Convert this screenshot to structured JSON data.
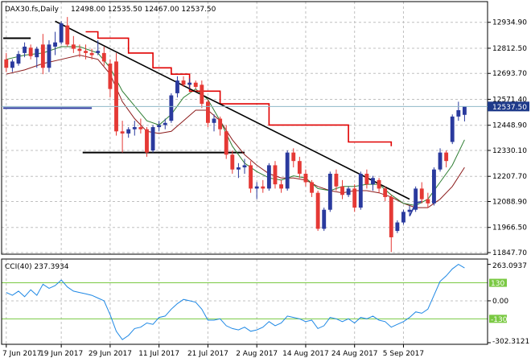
{
  "symbol_label": "DAX30.fs,Daily",
  "ohlc_label": "12498.00 12535.50 12467.00 12537.50",
  "current_price_label": "12537.50",
  "cci_label": "CCI(40) 237.3934",
  "colors": {
    "bull": "#2a3a9e",
    "bear": "#e53935",
    "ma_fast": "#2e7d32",
    "ma_slow": "#8b1a1a",
    "stop_line": "#e00000",
    "trendline": "#000000",
    "cci_line": "#1e88e5",
    "cci_level": "#7ac943",
    "price_tag_bg": "#1e3a8a",
    "price_tag_line": "#8fb8c8"
  },
  "chart_data": [
    {
      "type": "candlestick",
      "title": "DAX30.fs,Daily",
      "y_ticks": [
        12934.9,
        12812.5,
        12693.7,
        12571.4,
        12448.9,
        12330.1,
        12207.7,
        12088.9,
        11966.5,
        11847.7
      ],
      "y_tick_labels": [
        "12934.90",
        "12812.50",
        "12693.70",
        "12571.40",
        "12448.90",
        "12330.10",
        "12207.70",
        "12088.90",
        "11966.50",
        "11847.70"
      ],
      "ylim": [
        11847.7,
        13025
      ],
      "x_tick_labels": [
        "7 Jun 2017",
        "19 Jun 2017",
        "29 Jun 2017",
        "11 Jul 2017",
        "21 Jul 2017",
        "2 Aug 2017",
        "14 Aug 2017",
        "24 Aug 2017",
        "5 Sep 2017"
      ],
      "x_tick_bar_index": [
        0,
        9,
        17,
        25,
        33,
        41,
        49,
        57,
        65
      ],
      "last_price": 12537.5,
      "candles": [
        [
          12760,
          12790,
          12700,
          12720
        ],
        [
          12720,
          12760,
          12700,
          12750
        ],
        [
          12740,
          12800,
          12730,
          12785
        ],
        [
          12790,
          12840,
          12770,
          12820
        ],
        [
          12815,
          12830,
          12760,
          12775
        ],
        [
          12770,
          12820,
          12720,
          12810
        ],
        [
          12830,
          12880,
          12690,
          12720
        ],
        [
          12720,
          12850,
          12700,
          12830
        ],
        [
          12820,
          12890,
          12780,
          12840
        ],
        [
          12840,
          12940,
          12830,
          12930
        ],
        [
          12920,
          12960,
          12820,
          12830
        ],
        [
          12830,
          12870,
          12790,
          12810
        ],
        [
          12810,
          12830,
          12770,
          12800
        ],
        [
          12800,
          12830,
          12760,
          12790
        ],
        [
          12790,
          12810,
          12760,
          12780
        ],
        [
          12790,
          12850,
          12780,
          12800
        ],
        [
          12790,
          12820,
          12730,
          12750
        ],
        [
          12740,
          12760,
          12580,
          12620
        ],
        [
          12750,
          12790,
          12400,
          12420
        ],
        [
          12420,
          12470,
          12320,
          12410
        ],
        [
          12410,
          12440,
          12390,
          12430
        ],
        [
          12430,
          12470,
          12400,
          12440
        ],
        [
          12440,
          12480,
          12410,
          12430
        ],
        [
          12430,
          12440,
          12300,
          12320
        ],
        [
          12330,
          12450,
          12320,
          12440
        ],
        [
          12440,
          12470,
          12420,
          12450
        ],
        [
          12450,
          12480,
          12430,
          12460
        ],
        [
          12470,
          12600,
          12460,
          12590
        ],
        [
          12600,
          12680,
          12580,
          12660
        ],
        [
          12660,
          12680,
          12630,
          12640
        ],
        [
          12640,
          12670,
          12620,
          12650
        ],
        [
          12650,
          12660,
          12620,
          12630
        ],
        [
          12640,
          12660,
          12530,
          12550
        ],
        [
          12560,
          12570,
          12440,
          12460
        ],
        [
          12460,
          12500,
          12420,
          12480
        ],
        [
          12480,
          12490,
          12400,
          12430
        ],
        [
          12420,
          12450,
          12290,
          12310
        ],
        [
          12310,
          12330,
          12220,
          12240
        ],
        [
          12240,
          12270,
          12200,
          12250
        ],
        [
          12250,
          12290,
          12220,
          12260
        ],
        [
          12260,
          12280,
          12130,
          12150
        ],
        [
          12150,
          12180,
          12100,
          12160
        ],
        [
          12160,
          12190,
          12130,
          12150
        ],
        [
          12150,
          12270,
          12140,
          12260
        ],
        [
          12260,
          12280,
          12150,
          12170
        ],
        [
          12170,
          12190,
          12130,
          12150
        ],
        [
          12150,
          12330,
          12140,
          12320
        ],
        [
          12320,
          12340,
          12250,
          12280
        ],
        [
          12280,
          12300,
          12200,
          12220
        ],
        [
          12220,
          12240,
          12160,
          12180
        ],
        [
          12180,
          12190,
          12110,
          12130
        ],
        [
          12130,
          12140,
          11950,
          11960
        ],
        [
          11960,
          12060,
          11950,
          12050
        ],
        [
          12050,
          12230,
          12040,
          12220
        ],
        [
          12220,
          12240,
          12140,
          12160
        ],
        [
          12160,
          12190,
          12100,
          12120
        ],
        [
          12120,
          12160,
          12110,
          12150
        ],
        [
          12150,
          12170,
          12040,
          12060
        ],
        [
          12060,
          12230,
          12050,
          12220
        ],
        [
          12220,
          12240,
          12150,
          12170
        ],
        [
          12170,
          12210,
          12140,
          12200
        ],
        [
          12190,
          12200,
          12130,
          12150
        ],
        [
          12150,
          12160,
          12090,
          12110
        ],
        [
          12110,
          12120,
          11850,
          11920
        ],
        [
          11950,
          12000,
          11940,
          11990
        ],
        [
          11990,
          12050,
          11980,
          12040
        ],
        [
          12040,
          12070,
          12020,
          12050
        ],
        [
          12050,
          12160,
          12040,
          12150
        ],
        [
          12150,
          12180,
          12080,
          12100
        ],
        [
          12100,
          12130,
          12060,
          12080
        ],
        [
          12080,
          12250,
          12070,
          12240
        ],
        [
          12240,
          12340,
          12230,
          12320
        ],
        [
          12320,
          12330,
          12250,
          12280
        ],
        [
          12370,
          12500,
          12360,
          12490
        ],
        [
          12490,
          12560,
          12470,
          12520
        ],
        [
          12498,
          12535.5,
          12467,
          12537.5
        ]
      ],
      "ma_fast": [
        [
          0,
          12760
        ],
        [
          3,
          12780
        ],
        [
          6,
          12790
        ],
        [
          9,
          12820
        ],
        [
          12,
          12820
        ],
        [
          15,
          12790
        ],
        [
          17,
          12720
        ],
        [
          19,
          12610
        ],
        [
          21,
          12540
        ],
        [
          23,
          12470
        ],
        [
          25,
          12450
        ],
        [
          27,
          12500
        ],
        [
          29,
          12580
        ],
        [
          31,
          12620
        ],
        [
          33,
          12570
        ],
        [
          35,
          12470
        ],
        [
          37,
          12350
        ],
        [
          39,
          12270
        ],
        [
          41,
          12230
        ],
        [
          43,
          12200
        ],
        [
          45,
          12190
        ],
        [
          47,
          12210
        ],
        [
          49,
          12200
        ],
        [
          51,
          12150
        ],
        [
          53,
          12140
        ],
        [
          55,
          12160
        ],
        [
          57,
          12160
        ],
        [
          59,
          12170
        ],
        [
          61,
          12170
        ],
        [
          63,
          12120
        ],
        [
          65,
          12080
        ],
        [
          67,
          12070
        ],
        [
          69,
          12100
        ],
        [
          71,
          12180
        ],
        [
          73,
          12260
        ],
        [
          75,
          12380
        ]
      ],
      "ma_slow": [
        [
          0,
          12690
        ],
        [
          3,
          12710
        ],
        [
          6,
          12740
        ],
        [
          9,
          12760
        ],
        [
          12,
          12780
        ],
        [
          15,
          12760
        ],
        [
          17,
          12690
        ],
        [
          19,
          12560
        ],
        [
          21,
          12480
        ],
        [
          23,
          12420
        ],
        [
          25,
          12410
        ],
        [
          27,
          12420
        ],
        [
          29,
          12470
        ],
        [
          31,
          12520
        ],
        [
          33,
          12520
        ],
        [
          35,
          12470
        ],
        [
          37,
          12380
        ],
        [
          39,
          12310
        ],
        [
          41,
          12260
        ],
        [
          43,
          12220
        ],
        [
          45,
          12200
        ],
        [
          47,
          12200
        ],
        [
          49,
          12190
        ],
        [
          51,
          12160
        ],
        [
          53,
          12140
        ],
        [
          55,
          12130
        ],
        [
          57,
          12140
        ],
        [
          59,
          12140
        ],
        [
          61,
          12130
        ],
        [
          63,
          12110
        ],
        [
          65,
          12080
        ],
        [
          67,
          12060
        ],
        [
          69,
          12060
        ],
        [
          71,
          12100
        ],
        [
          73,
          12160
        ],
        [
          75,
          12250
        ]
      ],
      "stop_line": [
        [
          13,
          12890
        ],
        [
          15,
          12890
        ],
        [
          15,
          12860
        ],
        [
          20,
          12860
        ],
        [
          20,
          12790
        ],
        [
          24,
          12790
        ],
        [
          24,
          12720
        ],
        [
          27,
          12720
        ],
        [
          27,
          12690
        ],
        [
          30,
          12690
        ],
        [
          30,
          12610
        ],
        [
          35,
          12610
        ],
        [
          35,
          12550
        ],
        [
          43,
          12550
        ],
        [
          43,
          12450
        ],
        [
          56,
          12450
        ],
        [
          56,
          12370
        ],
        [
          63,
          12370
        ],
        [
          63,
          12350
        ]
      ],
      "trendline": [
        [
          8,
          12940
        ],
        [
          66,
          12100
        ]
      ],
      "support_levels": [
        {
          "from": 0,
          "to": 4,
          "value": 12860
        },
        {
          "from": 0,
          "to": 14,
          "value": 12530
        },
        {
          "from": 13,
          "to": 39,
          "value": 12320
        }
      ],
      "recovery_line": [
        [
          66,
          12020
        ],
        [
          67,
          12080
        ],
        [
          68,
          12090
        ]
      ]
    },
    {
      "type": "line",
      "title": "CCI(40) 237.3934",
      "ylim": [
        -302.3121,
        290
      ],
      "y_tick_labels": [
        "263.0937",
        "0.00",
        "-302.3121"
      ],
      "y_ticks": [
        263.0937,
        0,
        -302.3121
      ],
      "levels": [
        130,
        -130
      ],
      "level_labels": [
        "130",
        "-130"
      ],
      "values": [
        60,
        40,
        70,
        30,
        80,
        40,
        120,
        90,
        110,
        150,
        100,
        70,
        60,
        50,
        40,
        20,
        0,
        -100,
        -220,
        -280,
        -250,
        -200,
        -190,
        -160,
        -170,
        -120,
        -110,
        -60,
        -20,
        10,
        0,
        -10,
        -60,
        -140,
        -140,
        -130,
        -180,
        -200,
        -210,
        -190,
        -220,
        -210,
        -190,
        -150,
        -180,
        -160,
        -110,
        -120,
        -130,
        -150,
        -140,
        -200,
        -180,
        -120,
        -130,
        -150,
        -130,
        -160,
        -120,
        -130,
        -110,
        -140,
        -150,
        -190,
        -170,
        -150,
        -120,
        -80,
        -90,
        -60,
        40,
        140,
        180,
        230,
        263,
        237.3934
      ]
    }
  ]
}
